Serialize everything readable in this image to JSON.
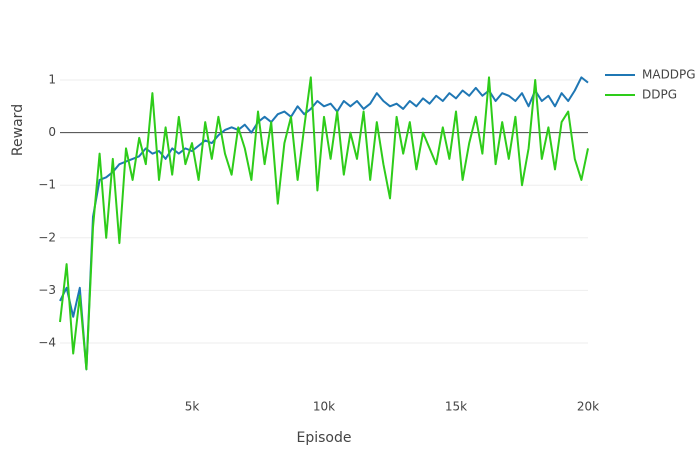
{
  "chart_data": {
    "type": "line",
    "x_label": "Episode",
    "y_label": "Reward",
    "x": [
      0,
      250,
      500,
      750,
      1000,
      1250,
      1500,
      1750,
      2000,
      2250,
      2500,
      2750,
      3000,
      3250,
      3500,
      3750,
      4000,
      4250,
      4500,
      4750,
      5000,
      5250,
      5500,
      5750,
      6000,
      6250,
      6500,
      6750,
      7000,
      7250,
      7500,
      7750,
      8000,
      8250,
      8500,
      8750,
      9000,
      9250,
      9500,
      9750,
      10000,
      10250,
      10500,
      10750,
      11000,
      11250,
      11500,
      11750,
      12000,
      12250,
      12500,
      12750,
      13000,
      13250,
      13500,
      13750,
      14000,
      14250,
      14500,
      14750,
      15000,
      15250,
      15500,
      15750,
      16000,
      16250,
      16500,
      16750,
      17000,
      17250,
      17500,
      17750,
      18000,
      18250,
      18500,
      18750,
      19000,
      19250,
      19500,
      19750,
      20000
    ],
    "series": [
      {
        "name": "MADDPG",
        "color": "#1f77b4",
        "values": [
          -3.2,
          -2.95,
          -3.5,
          -2.95,
          -4.5,
          -1.6,
          -0.9,
          -0.85,
          -0.75,
          -0.6,
          -0.55,
          -0.5,
          -0.45,
          -0.3,
          -0.4,
          -0.35,
          -0.5,
          -0.3,
          -0.4,
          -0.3,
          -0.35,
          -0.25,
          -0.15,
          -0.2,
          -0.05,
          0.05,
          0.1,
          0.05,
          0.15,
          0.0,
          0.2,
          0.3,
          0.2,
          0.35,
          0.4,
          0.3,
          0.5,
          0.35,
          0.45,
          0.6,
          0.5,
          0.55,
          0.4,
          0.6,
          0.5,
          0.6,
          0.45,
          0.55,
          0.75,
          0.6,
          0.5,
          0.55,
          0.45,
          0.6,
          0.5,
          0.65,
          0.55,
          0.7,
          0.6,
          0.75,
          0.65,
          0.8,
          0.7,
          0.85,
          0.7,
          0.8,
          0.6,
          0.75,
          0.7,
          0.6,
          0.75,
          0.5,
          0.8,
          0.6,
          0.7,
          0.5,
          0.75,
          0.6,
          0.8,
          1.05,
          0.95
        ]
      },
      {
        "name": "DDPG",
        "color": "#2ecc1a",
        "values": [
          -3.6,
          -2.5,
          -4.2,
          -3.1,
          -4.5,
          -1.8,
          -0.4,
          -2.0,
          -0.5,
          -2.1,
          -0.3,
          -0.9,
          -0.1,
          -0.6,
          0.75,
          -0.9,
          0.1,
          -0.8,
          0.3,
          -0.6,
          -0.2,
          -0.9,
          0.2,
          -0.5,
          0.3,
          -0.4,
          -0.8,
          0.1,
          -0.3,
          -0.9,
          0.4,
          -0.6,
          0.2,
          -1.35,
          -0.2,
          0.3,
          -0.9,
          0.1,
          1.05,
          -1.1,
          0.3,
          -0.5,
          0.4,
          -0.8,
          0.0,
          -0.5,
          0.4,
          -0.9,
          0.2,
          -0.6,
          -1.25,
          0.3,
          -0.4,
          0.2,
          -0.7,
          0.0,
          -0.3,
          -0.6,
          0.1,
          -0.5,
          0.4,
          -0.9,
          -0.2,
          0.3,
          -0.4,
          1.05,
          -0.6,
          0.2,
          -0.5,
          0.3,
          -1.0,
          -0.3,
          1.0,
          -0.5,
          0.1,
          -0.7,
          0.2,
          0.4,
          -0.5,
          -0.9,
          -0.3
        ]
      }
    ],
    "xlim": [
      0,
      20000
    ],
    "xticks": [
      {
        "value": 5000,
        "label": "5k"
      },
      {
        "value": 10000,
        "label": "10k"
      },
      {
        "value": 15000,
        "label": "15k"
      },
      {
        "value": 20000,
        "label": "20k"
      }
    ],
    "ylim": [
      -4.95,
      1.38
    ],
    "yticks": [
      {
        "value": -4,
        "label": "−4"
      },
      {
        "value": -3,
        "label": "−3"
      },
      {
        "value": -2,
        "label": "−2"
      },
      {
        "value": -1,
        "label": "−1"
      },
      0,
      1
    ],
    "grid": true,
    "legend": "outside-right"
  }
}
